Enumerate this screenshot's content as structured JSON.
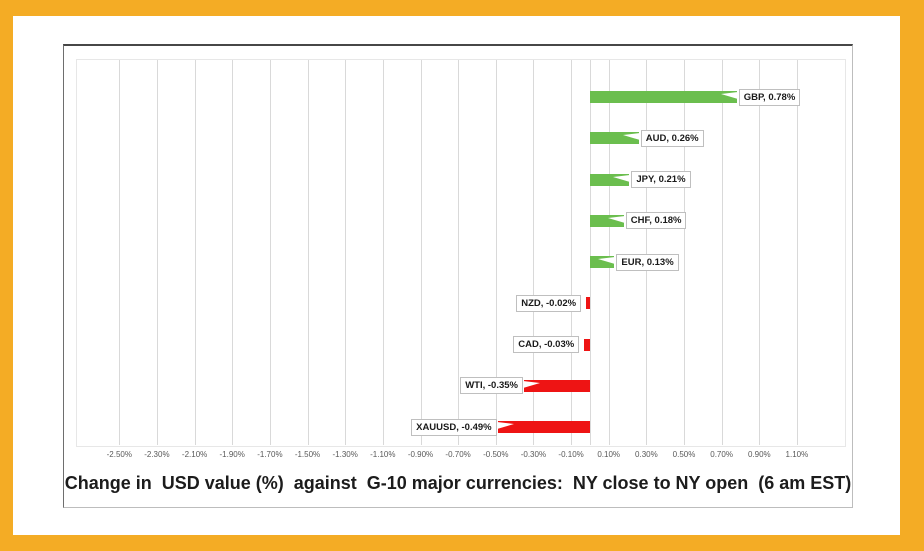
{
  "chart_data": {
    "type": "bar",
    "orientation": "horizontal",
    "title": "Change in  USD value (%)  against  G-10 major currencies:  NY close to NY open  (6 am EST)",
    "categories": [
      "GBP",
      "AUD",
      "JPY",
      "CHF",
      "EUR",
      "NZD",
      "CAD",
      "WTI",
      "XAUUSD"
    ],
    "values": [
      0.78,
      0.26,
      0.21,
      0.18,
      0.13,
      -0.02,
      -0.03,
      -0.35,
      -0.49
    ],
    "data_labels": [
      "GBP, 0.78%",
      "AUD, 0.26%",
      "JPY, 0.21%",
      "CHF, 0.18%",
      "EUR, 0.13%",
      "NZD, -0.02%",
      "CAD, -0.03%",
      "WTI, -0.35%",
      "XAUUSD, -0.49%"
    ],
    "x_tick_labels": [
      "-2.50%",
      "-2.30%",
      "-2.10%",
      "-1.90%",
      "-1.70%",
      "-1.50%",
      "-1.30%",
      "-1.10%",
      "-0.90%",
      "-0.70%",
      "-0.50%",
      "-0.30%",
      "-0.10%",
      "0.10%",
      "0.30%",
      "0.50%",
      "0.70%",
      "0.90%",
      "1.10%"
    ],
    "xlim": [
      -2.73,
      1.35
    ],
    "grid": true,
    "legend": false,
    "positive_color": "#6BBE4E",
    "negative_color": "#EE1414",
    "frame_color": "#F4AC25",
    "gridline_color": "#d9d9d9"
  }
}
